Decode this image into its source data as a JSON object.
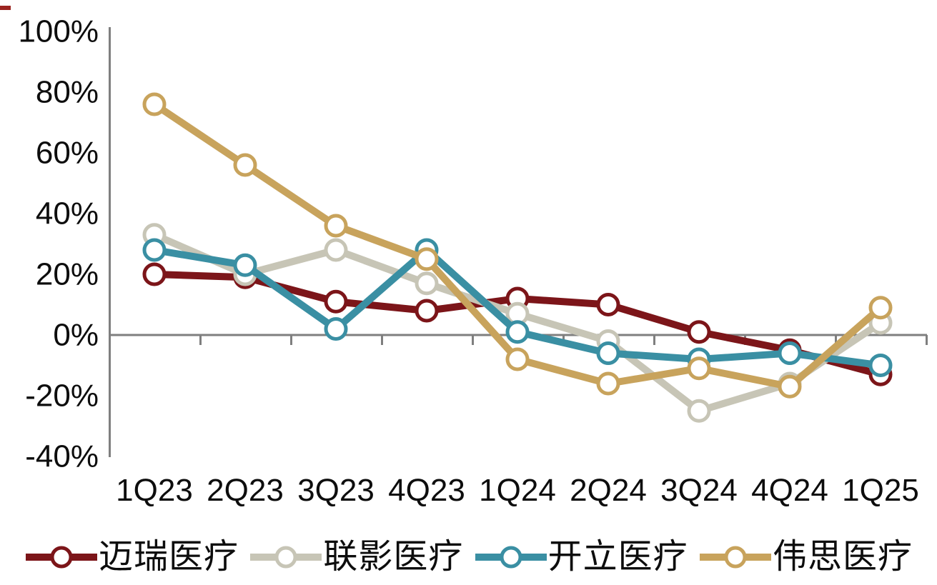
{
  "chart_data": {
    "type": "line",
    "title": "",
    "xlabel": "",
    "ylabel": "",
    "categories": [
      "1Q23",
      "2Q23",
      "3Q23",
      "4Q23",
      "1Q24",
      "2Q24",
      "3Q24",
      "4Q24",
      "1Q25"
    ],
    "series": [
      {
        "name": "迈瑞医疗",
        "color": "#7C1519",
        "values": [
          20,
          19,
          11,
          8,
          12,
          10,
          1,
          -5,
          -13
        ]
      },
      {
        "name": "联影医疗",
        "color": "#C7C5B6",
        "values": [
          33,
          20,
          28,
          17,
          7,
          -2,
          -25,
          -16,
          4
        ]
      },
      {
        "name": "开立医疗",
        "color": "#3A8FA3",
        "values": [
          28,
          23,
          2,
          28,
          1,
          -6,
          -8,
          -6,
          -10
        ]
      },
      {
        "name": "伟思医疗",
        "color": "#C8A35C",
        "values": [
          76,
          56,
          36,
          25,
          -8,
          -16,
          -11,
          -17,
          9
        ]
      }
    ],
    "ylim": [
      -40,
      100
    ],
    "y_tick_step": 20,
    "y_tick_labels": [
      "100%",
      "80%",
      "60%",
      "40%",
      "20%",
      "0%",
      "-20%",
      "-40%"
    ],
    "y_tick_values": [
      100,
      80,
      60,
      40,
      20,
      0,
      -20,
      -40
    ],
    "grid": "none",
    "marker": "open-circle",
    "legend_position": "bottom",
    "axis_color": "#7F7F7F",
    "text_color": "#0d0d0d",
    "zero_axis_ticks": true
  },
  "decor": {
    "top_left_mark_color": "#9b2420"
  }
}
